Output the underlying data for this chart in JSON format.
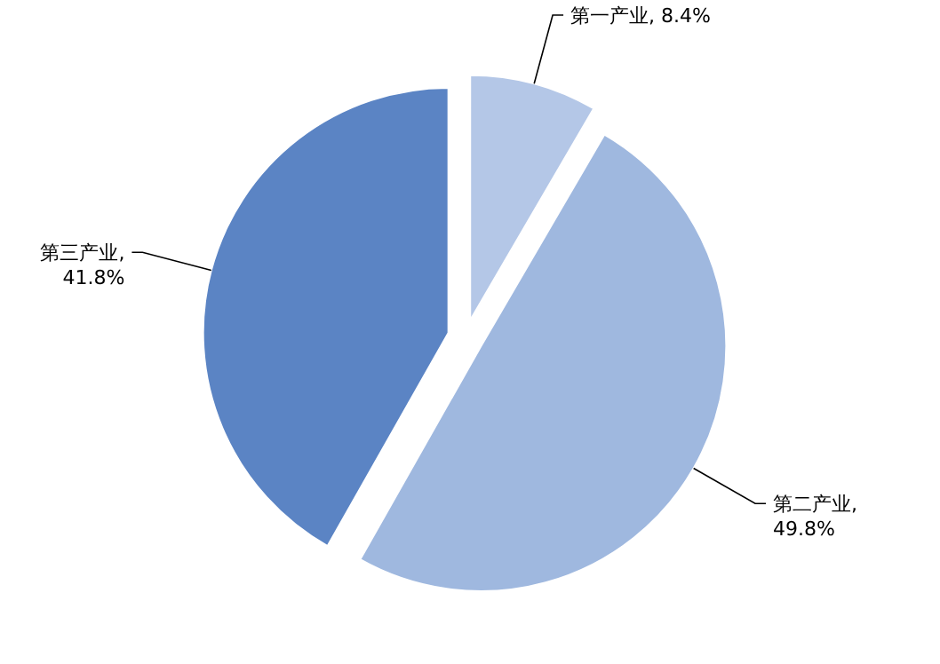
{
  "chart_data": {
    "type": "pie",
    "categories": [
      "第一产业",
      "第二产业",
      "第三产业"
    ],
    "values": [
      8.4,
      49.8,
      41.8
    ],
    "value_labels": [
      ", 8.4%",
      ", 49.8%",
      ", 41.8%"
    ],
    "colors": [
      "#b4c7e7",
      "#9fb8df",
      "#5b84c4"
    ],
    "data_labels": true
  }
}
